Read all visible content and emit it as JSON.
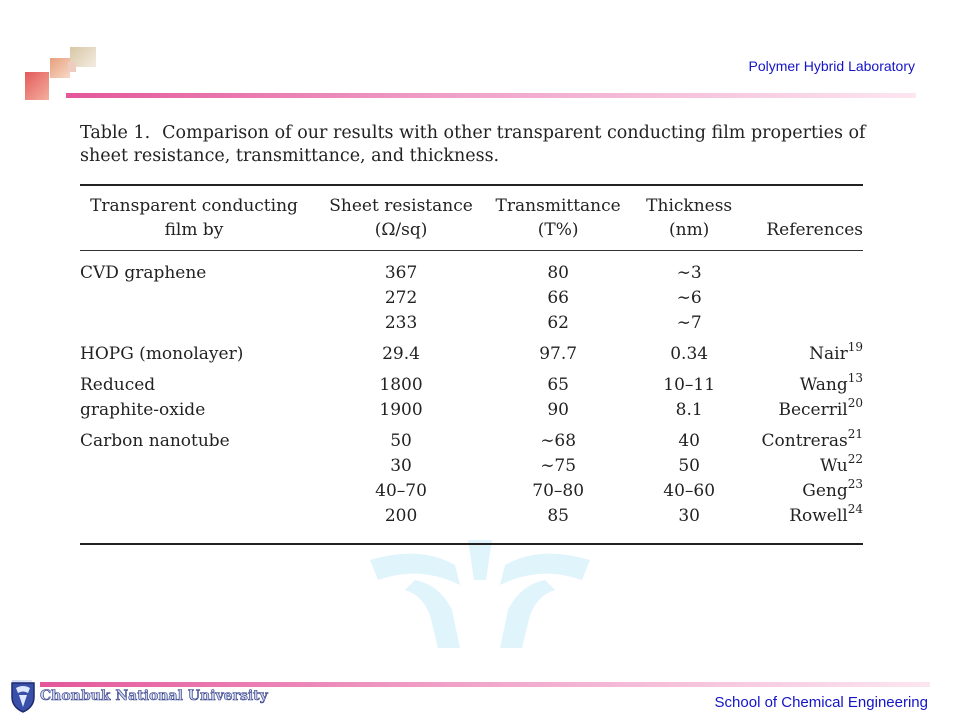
{
  "header": {
    "lab": "Polymer Hybrid Laboratory"
  },
  "footer": {
    "university": "Chonbuk National University",
    "school": "School of Chemical Engineering"
  },
  "caption": {
    "label": "Table 1.",
    "text": "Comparison of our results with other transparent conducting film properties of sheet resistance, transmittance, and thickness."
  },
  "table": {
    "headers": [
      [
        "Transparent conducting",
        "film by"
      ],
      [
        "Sheet resistance",
        "(Ω/sq)"
      ],
      [
        "Transmittance",
        "(T%)"
      ],
      [
        "Thickness",
        "(nm)"
      ],
      [
        "",
        "References"
      ]
    ],
    "rows": [
      {
        "film": "CVD graphene",
        "sheet": "367",
        "trans": "80",
        "thick": "∼3",
        "ref": "",
        "sup": ""
      },
      {
        "film": "",
        "sheet": "272",
        "trans": "66",
        "thick": "∼6",
        "ref": "",
        "sup": ""
      },
      {
        "film": "",
        "sheet": "233",
        "trans": "62",
        "thick": "∼7",
        "ref": "",
        "sup": ""
      },
      {
        "film": "HOPG (monolayer)",
        "sheet": "29.4",
        "trans": "97.7",
        "thick": "0.34",
        "ref": "Nair",
        "sup": "19"
      },
      {
        "film": "Reduced",
        "sheet": "1800",
        "trans": "65",
        "thick": "10–11",
        "ref": "Wang",
        "sup": "13"
      },
      {
        "film": "graphite-oxide",
        "sheet": "1900",
        "trans": "90",
        "thick": "8.1",
        "ref": "Becerril",
        "sup": "20"
      },
      {
        "film": "Carbon nanotube",
        "sheet": "50",
        "trans": "∼68",
        "thick": "40",
        "ref": "Contreras",
        "sup": "21"
      },
      {
        "film": "",
        "sheet": "30",
        "trans": "∼75",
        "thick": "50",
        "ref": "Wu",
        "sup": "22"
      },
      {
        "film": "",
        "sheet": "40–70",
        "trans": "70–80",
        "thick": "40–60",
        "ref": "Geng",
        "sup": "23"
      },
      {
        "film": "",
        "sheet": "200",
        "trans": "85",
        "thick": "30",
        "ref": "Rowell",
        "sup": "24"
      }
    ]
  }
}
